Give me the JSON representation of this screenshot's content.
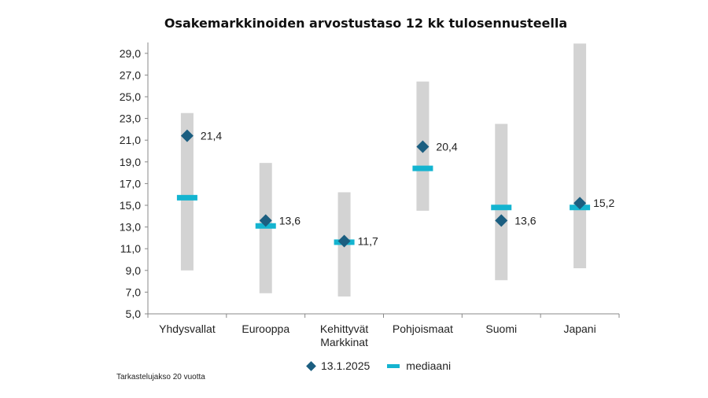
{
  "chart_data": {
    "type": "range",
    "title": "Osakemarkkinoiden arvostustaso 12 kk tulosennusteella",
    "categories": [
      "Yhdysvallat",
      "Eurooppa",
      "Kehittyvät Markkinat",
      "Pohjoismaat",
      "Suomi",
      "Japani"
    ],
    "category_lines": [
      [
        "Yhdysvallat"
      ],
      [
        "Eurooppa"
      ],
      [
        "Kehittyvät",
        "Markkinat"
      ],
      [
        "Pohjoismaat"
      ],
      [
        "Suomi"
      ],
      [
        "Japani"
      ]
    ],
    "ranges": [
      [
        9.0,
        23.5
      ],
      [
        6.9,
        18.9
      ],
      [
        6.6,
        16.2
      ],
      [
        14.5,
        26.4
      ],
      [
        8.1,
        22.5
      ],
      [
        9.2,
        29.9
      ]
    ],
    "series": [
      {
        "name": "13.1.2025",
        "values": [
          21.4,
          13.6,
          11.7,
          20.4,
          13.6,
          15.2
        ],
        "color": "#1b5e80",
        "marker": "diamond"
      },
      {
        "name": "mediaani",
        "values": [
          15.7,
          13.1,
          11.6,
          18.4,
          14.8,
          14.8
        ],
        "color": "#14b4d0",
        "marker": "dash"
      }
    ],
    "value_labels": [
      "21,4",
      "13,6",
      "11,7",
      "20,4",
      "13,6",
      "15,2"
    ],
    "ylim": [
      5.0,
      30.0
    ],
    "yticks": [
      "5,0",
      "7,0",
      "9,0",
      "11,0",
      "13,0",
      "15,0",
      "17,0",
      "19,0",
      "21,0",
      "23,0",
      "25,0",
      "27,0",
      "29,0"
    ],
    "range_color": "#d3d3d3",
    "grid": false,
    "legend_position": "bottom"
  },
  "footnote": "Tarkastelujakso 20 vuotta"
}
